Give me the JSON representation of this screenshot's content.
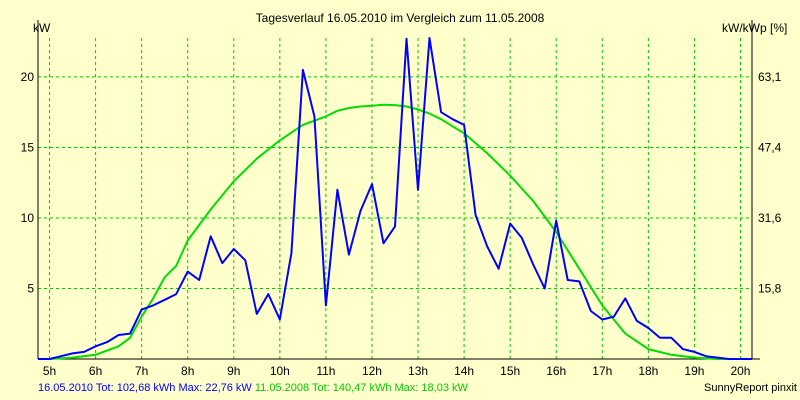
{
  "chart_data": {
    "type": "line",
    "title": "Tagesverlauf 16.05.2010 im Vergleich zum 11.05.2008",
    "ylabel_left": "kW",
    "ylabel_right": "kW/kWp [%]",
    "x_ticks": [
      "5h",
      "6h",
      "7h",
      "8h",
      "9h",
      "10h",
      "11h",
      "12h",
      "13h",
      "14h",
      "15h",
      "16h",
      "17h",
      "18h",
      "19h",
      "20h"
    ],
    "xlim": [
      4.75,
      20.25
    ],
    "ylim": [
      0,
      22.76
    ],
    "y_ticks_left": [
      {
        "value": 5,
        "label": "5"
      },
      {
        "value": 10,
        "label": "10"
      },
      {
        "value": 15,
        "label": "15"
      },
      {
        "value": 20,
        "label": "20"
      }
    ],
    "y_ticks_right": [
      {
        "value": 5,
        "label": "15,8"
      },
      {
        "value": 10,
        "label": "31,6"
      },
      {
        "value": 15,
        "label": "47,4"
      },
      {
        "value": 20,
        "label": "63,1"
      }
    ],
    "grid": true,
    "colors": {
      "background": "#ffffcc",
      "grid": "#00cc00",
      "series1": "#0000ff",
      "series2": "#00dd00"
    },
    "series": [
      {
        "name": "16.05.2010",
        "color": "#0000ff",
        "x": [
          4.75,
          5.0,
          5.25,
          5.5,
          5.75,
          6.0,
          6.25,
          6.5,
          6.75,
          7.0,
          7.25,
          7.5,
          7.75,
          8.0,
          8.25,
          8.5,
          8.75,
          9.0,
          9.25,
          9.5,
          9.75,
          10.0,
          10.25,
          10.5,
          10.75,
          11.0,
          11.25,
          11.5,
          11.75,
          12.0,
          12.25,
          12.5,
          12.75,
          13.0,
          13.25,
          13.5,
          13.75,
          14.0,
          14.25,
          14.5,
          14.75,
          15.0,
          15.25,
          15.5,
          15.75,
          16.0,
          16.25,
          16.5,
          16.75,
          17.0,
          17.25,
          17.5,
          17.75,
          18.0,
          18.25,
          18.5,
          18.75,
          19.0,
          19.25,
          19.5,
          19.75,
          20.0,
          20.25
        ],
        "y": [
          0,
          0,
          0.2,
          0.4,
          0.5,
          0.9,
          1.2,
          1.7,
          1.8,
          3.5,
          3.8,
          4.2,
          4.6,
          6.2,
          5.6,
          8.7,
          6.8,
          7.8,
          7.0,
          3.2,
          4.6,
          2.8,
          7.5,
          20.5,
          17.2,
          3.8,
          12.0,
          7.4,
          10.5,
          12.4,
          8.2,
          9.4,
          22.7,
          12.0,
          22.76,
          17.5,
          17.0,
          16.6,
          10.2,
          8.0,
          6.4,
          9.6,
          8.6,
          6.7,
          5.0,
          9.8,
          5.6,
          5.5,
          3.4,
          2.8,
          3.0,
          4.3,
          2.7,
          2.2,
          1.5,
          1.5,
          0.7,
          0.5,
          0.2,
          0.1,
          0,
          0,
          0
        ]
      },
      {
        "name": "11.05.2008",
        "color": "#00dd00",
        "x": [
          4.75,
          5.0,
          5.5,
          6.0,
          6.5,
          6.75,
          7.0,
          7.25,
          7.5,
          7.75,
          8.0,
          8.5,
          9.0,
          9.5,
          10.0,
          10.5,
          11.0,
          11.25,
          11.5,
          11.75,
          12.0,
          12.25,
          12.5,
          12.75,
          13.0,
          13.25,
          13.5,
          13.75,
          14.0,
          14.5,
          15.0,
          15.5,
          16.0,
          16.5,
          17.0,
          17.5,
          18.0,
          18.5,
          19.0,
          19.5,
          20.0,
          20.25
        ],
        "y": [
          0,
          0,
          0.1,
          0.3,
          0.9,
          1.5,
          3.0,
          4.3,
          5.8,
          6.6,
          8.4,
          10.6,
          12.6,
          14.2,
          15.5,
          16.6,
          17.2,
          17.6,
          17.8,
          17.9,
          17.95,
          18.03,
          18.0,
          17.9,
          17.7,
          17.4,
          17.0,
          16.5,
          16.0,
          14.6,
          13.0,
          11.2,
          9.0,
          6.4,
          3.8,
          1.8,
          0.7,
          0.3,
          0.1,
          0,
          0,
          0
        ]
      }
    ],
    "footer": {
      "series1": "16.05.2010 Tot: 102,68 kWh Max: 22,76 kW",
      "series2": "11.05.2008 Tot: 140,47 kWh Max: 18,03 kW",
      "source": "SunnyReport pinxit"
    }
  }
}
